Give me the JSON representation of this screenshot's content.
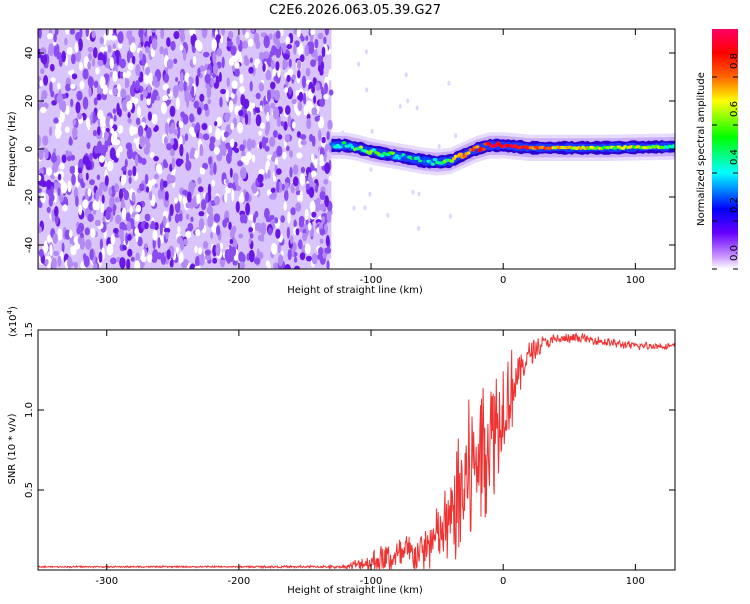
{
  "title": "C2E6.2026.063.05.39.G27",
  "chart_data": [
    {
      "type": "heatmap",
      "xlabel": "Height of straight line (km)",
      "ylabel": "Frequency (Hz)",
      "xlim": [
        -352,
        130
      ],
      "ylim": [
        -50,
        50
      ],
      "xticks": [
        -300,
        -200,
        -100,
        0,
        100
      ],
      "xtick_labels": [
        "-300",
        "-200",
        "-100",
        "0",
        "100"
      ],
      "yticks": [
        40,
        20,
        0,
        -20,
        -40
      ],
      "ytick_labels": [
        "40",
        "20",
        "0",
        "-20",
        "-40"
      ],
      "noise_region_x": [
        -352,
        -130
      ],
      "signal_track": {
        "x": [
          -130,
          -120,
          -110,
          -100,
          -90,
          -80,
          -70,
          -60,
          -50,
          -40,
          -30,
          -20,
          -10,
          0,
          10,
          20,
          40,
          60,
          80,
          100,
          130
        ],
        "freq": [
          1.5,
          1.5,
          0.5,
          -1.0,
          -2.0,
          -3.0,
          -4.0,
          -5.0,
          -5.5,
          -5.0,
          -2.5,
          0.0,
          1.5,
          1.5,
          1.0,
          0.5,
          0.5,
          0.5,
          0.5,
          0.7,
          1.0
        ],
        "amplitude": [
          0.45,
          0.5,
          0.55,
          0.55,
          0.5,
          0.5,
          0.45,
          0.45,
          0.5,
          0.6,
          0.7,
          0.8,
          0.9,
          0.92,
          0.9,
          0.85,
          0.7,
          0.65,
          0.6,
          0.6,
          0.55
        ]
      },
      "colorbar": {
        "label": "Normalized spectral amplitude",
        "range": [
          0,
          1
        ],
        "ticks": [
          0.0,
          0.2,
          0.4,
          0.6,
          0.8
        ],
        "tick_labels": [
          "0.0",
          "0.2",
          "0.4",
          "0.6",
          "0.8"
        ],
        "colors": [
          "#ffffff",
          "#cc99ff",
          "#6600ff",
          "#0000ff",
          "#00ffff",
          "#00ff00",
          "#ffff00",
          "#ff6600",
          "#ff0000",
          "#ff0066"
        ]
      }
    },
    {
      "type": "line",
      "xlabel": "Height of straight line (km)",
      "ylabel": "SNR (10 * v/v)",
      "scale_label": "(x10",
      "scale_exponent": "4",
      "scale_suffix": ")",
      "xlim": [
        -352,
        130
      ],
      "ylim": [
        0,
        1.5
      ],
      "xticks": [
        -300,
        -200,
        -100,
        0,
        100
      ],
      "xtick_labels": [
        "-300",
        "-200",
        "-100",
        "0",
        "100"
      ],
      "yticks": [
        0.5,
        1.0,
        1.5
      ],
      "ytick_labels": [
        "0.5",
        "1.0",
        "1.5"
      ],
      "color": "#ee3333",
      "envelope": {
        "x": [
          -352,
          -200,
          -120,
          -100,
          -80,
          -60,
          -50,
          -40,
          -30,
          -20,
          -10,
          0,
          10,
          20,
          30,
          40,
          60,
          80,
          100,
          130
        ],
        "base": [
          0.02,
          0.02,
          0.02,
          0.05,
          0.08,
          0.12,
          0.2,
          0.3,
          0.5,
          0.7,
          0.85,
          1.0,
          1.2,
          1.35,
          1.42,
          1.44,
          1.45,
          1.42,
          1.4,
          1.4
        ],
        "spread": [
          0.005,
          0.005,
          0.01,
          0.08,
          0.12,
          0.15,
          0.2,
          0.3,
          0.5,
          0.5,
          0.45,
          0.4,
          0.2,
          0.08,
          0.05,
          0.04,
          0.03,
          0.03,
          0.03,
          0.02
        ]
      }
    }
  ]
}
